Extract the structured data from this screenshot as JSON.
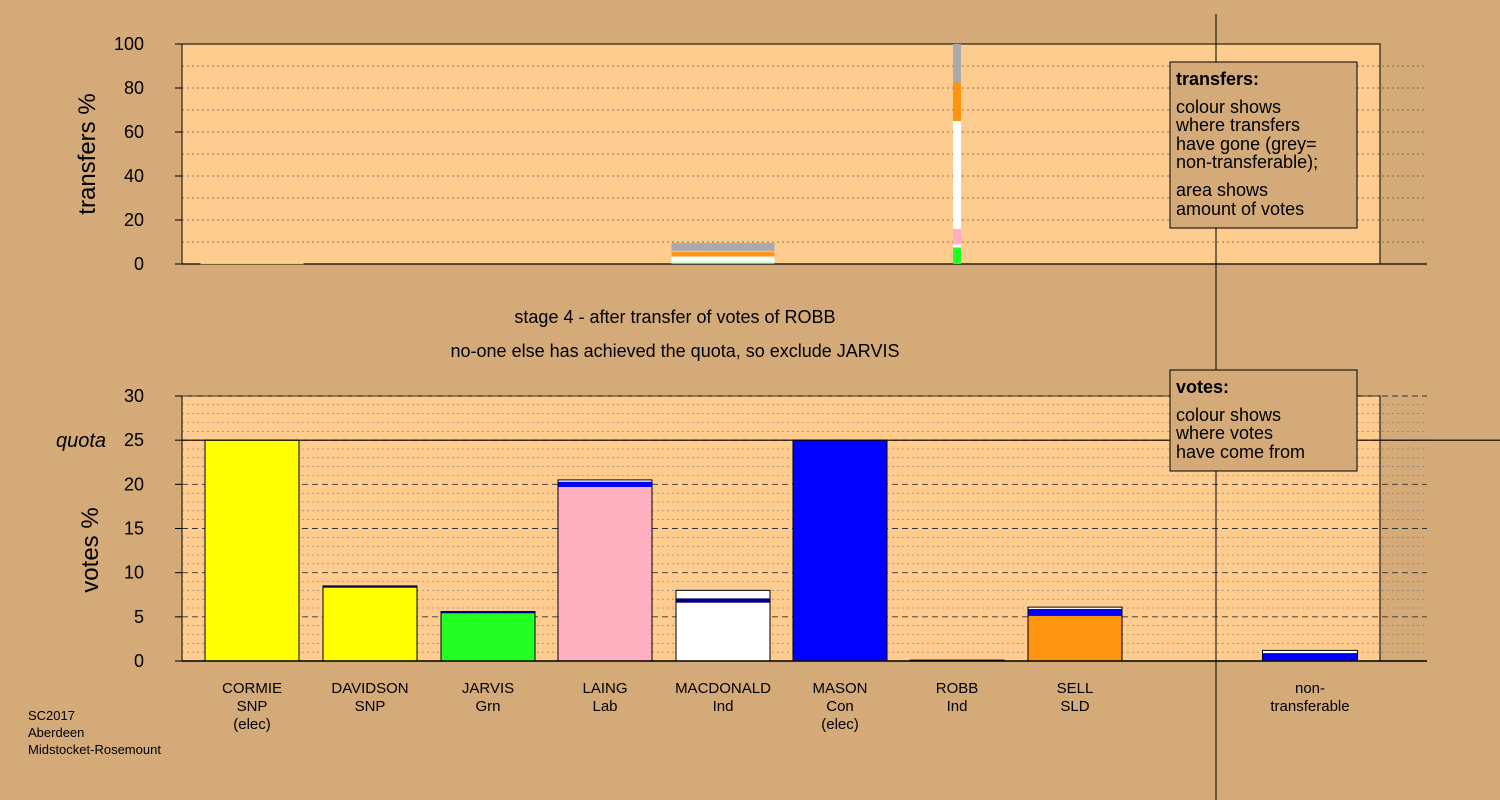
{
  "colors": {
    "background": "#d4aa78",
    "plot_bg": "#ffcc8f",
    "SNP": "#ffff00",
    "Grn": "#22ff22",
    "Lab": "#ffb0c0",
    "Ind": "#ffffff",
    "Con": "#0000ff",
    "SLD": "#ff9410",
    "Con_dark": "#000080",
    "nontransferable": "#aaaaaa"
  },
  "stage": {
    "line1": "stage 4 - after transfer of votes of ROBB",
    "line2": "no-one else has achieved the quota, so exclude JARVIS"
  },
  "footer": {
    "line1": "SC2017",
    "line2": "Aberdeen",
    "line3": "Midstocket-Rosemount"
  },
  "legend_transfers": {
    "title": "transfers:",
    "line1": "colour shows",
    "line2": "where transfers",
    "line3": "have gone (grey=",
    "line4": "non-transferable);",
    "line5": "area shows",
    "line6": "amount of votes"
  },
  "legend_votes": {
    "title": "votes:",
    "line1": "colour shows",
    "line2": "where votes",
    "line3": "have come from"
  },
  "chart_data": [
    {
      "type": "bar",
      "ylabel": "transfers %",
      "ylim": [
        0,
        100
      ],
      "yticks": [
        "0",
        "20",
        "40",
        "60",
        "80",
        "100"
      ],
      "categories": [
        "CORMIE",
        "DAVIDSON",
        "JARVIS",
        "LAING",
        "MACDONALD",
        "MASON",
        "ROBB",
        "SELL",
        "non-transferable"
      ],
      "bars": [
        {
          "candidate": "CORMIE",
          "segments": [
            {
              "color": "SNP",
              "value": 0.3
            }
          ]
        },
        {
          "candidate": "MACDONALD",
          "segments": [
            {
              "color": "Grn",
              "value": 0.6
            },
            {
              "color": "Ind",
              "value": 2.8
            },
            {
              "color": "SLD",
              "value": 2.0
            },
            {
              "color": "Lab",
              "value": 0.6
            },
            {
              "color": "nontransferable",
              "value": 3.6
            }
          ]
        },
        {
          "candidate": "ROBB",
          "narrow": true,
          "segments": [
            {
              "color": "Grn",
              "value": 7.5
            },
            {
              "color": "Ind",
              "value": 1.5
            },
            {
              "color": "Lab",
              "value": 7.0
            },
            {
              "color": "Ind",
              "value": 49.0
            },
            {
              "color": "SLD",
              "value": 17.5
            },
            {
              "color": "nontransferable",
              "value": 17.5
            }
          ]
        }
      ],
      "legend_position": "top-right"
    },
    {
      "type": "bar",
      "ylabel": "votes %",
      "ylim": [
        0,
        30
      ],
      "yticks": [
        "0",
        "5",
        "10",
        "15",
        "20",
        "25",
        "30"
      ],
      "quota": 25,
      "quota_label": "quota",
      "candidates": [
        {
          "name": "CORMIE",
          "party": "SNP",
          "note": "(elec)",
          "segments": [
            {
              "color": "SNP",
              "value": 25.0
            }
          ]
        },
        {
          "name": "DAVIDSON",
          "party": "SNP",
          "note": "",
          "segments": [
            {
              "color": "SNP",
              "value": 8.3
            },
            {
              "color": "Con_dark",
              "value": 0.2
            }
          ]
        },
        {
          "name": "JARVIS",
          "party": "Grn",
          "note": "",
          "segments": [
            {
              "color": "Grn",
              "value": 5.4
            },
            {
              "color": "Con_dark",
              "value": 0.2
            }
          ]
        },
        {
          "name": "LAING",
          "party": "Lab",
          "note": "",
          "segments": [
            {
              "color": "Lab",
              "value": 19.7
            },
            {
              "color": "Con",
              "value": 0.6
            },
            {
              "color": "Ind",
              "value": 0.2
            }
          ]
        },
        {
          "name": "MACDONALD",
          "party": "Ind",
          "note": "",
          "segments": [
            {
              "color": "Ind",
              "value": 6.6
            },
            {
              "color": "Con_dark",
              "value": 0.5
            },
            {
              "color": "Ind",
              "value": 0.9
            }
          ]
        },
        {
          "name": "MASON",
          "party": "Con",
          "note": "(elec)",
          "segments": [
            {
              "color": "Con",
              "value": 25.0
            }
          ]
        },
        {
          "name": "ROBB",
          "party": "Ind",
          "note": "",
          "segments": [
            {
              "color": "Ind",
              "value": 0.1
            }
          ]
        },
        {
          "name": "SELL",
          "party": "SLD",
          "note": "",
          "segments": [
            {
              "color": "SLD",
              "value": 5.1
            },
            {
              "color": "Con",
              "value": 0.8
            },
            {
              "color": "Ind",
              "value": 0.2
            }
          ]
        },
        {
          "name": "non-",
          "party": "transferable",
          "note": "",
          "nontransferable": true,
          "segments": [
            {
              "color": "Con",
              "value": 0.9
            },
            {
              "color": "Ind",
              "value": 0.3
            }
          ]
        }
      ],
      "legend_position": "top-right"
    }
  ]
}
